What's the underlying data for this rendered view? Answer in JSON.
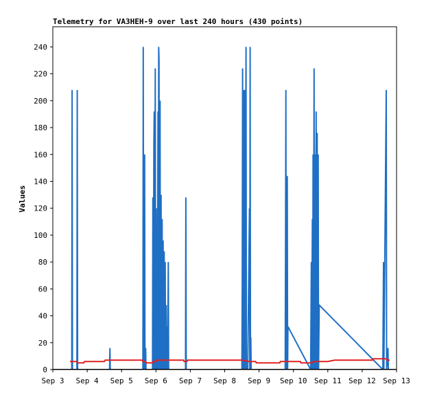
{
  "chart_data": {
    "type": "line",
    "title": "Telemetry for VA3HEH-9 over last 240 hours (430 points)",
    "xlabel": "",
    "ylabel": "Values",
    "ylim": [
      0,
      255
    ],
    "xlim": [
      3.0,
      13.0
    ],
    "yticks": [
      0,
      20,
      40,
      60,
      80,
      100,
      120,
      140,
      160,
      180,
      200,
      220,
      240
    ],
    "xticks": [
      {
        "v": 3,
        "label": "Sep 3"
      },
      {
        "v": 4,
        "label": "Sep 4"
      },
      {
        "v": 5,
        "label": "Sep 5"
      },
      {
        "v": 6,
        "label": "Sep 6"
      },
      {
        "v": 7,
        "label": "Sep 7"
      },
      {
        "v": 8,
        "label": "Sep 8"
      },
      {
        "v": 9,
        "label": "Sep 9"
      },
      {
        "v": 10,
        "label": "Sep 10"
      },
      {
        "v": 11,
        "label": "Sep 11"
      },
      {
        "v": 12,
        "label": "Sep 12"
      },
      {
        "v": 13,
        "label": "Sep 13"
      }
    ],
    "grid": false,
    "series": [
      {
        "color": "#1f6fc4",
        "points": [
          [
            3.55,
            0
          ],
          [
            3.56,
            208
          ],
          [
            3.57,
            0
          ],
          [
            3.7,
            0
          ],
          [
            3.71,
            208
          ],
          [
            3.72,
            0
          ],
          [
            4.65,
            0
          ],
          [
            4.66,
            16
          ],
          [
            4.67,
            0
          ],
          [
            5.62,
            0
          ],
          [
            5.63,
            240
          ],
          [
            5.64,
            0
          ],
          [
            5.66,
            112
          ],
          [
            5.67,
            160
          ],
          [
            5.68,
            0
          ],
          [
            5.7,
            16
          ],
          [
            5.71,
            0
          ],
          [
            5.9,
            0
          ],
          [
            5.91,
            128
          ],
          [
            5.92,
            0
          ],
          [
            5.94,
            170
          ],
          [
            5.95,
            192
          ],
          [
            5.96,
            0
          ],
          [
            5.98,
            224
          ],
          [
            5.99,
            0
          ],
          [
            6.01,
            120
          ],
          [
            6.02,
            0
          ],
          [
            6.03,
            40
          ],
          [
            6.04,
            0
          ],
          [
            6.06,
            192
          ],
          [
            6.07,
            0
          ],
          [
            6.08,
            240
          ],
          [
            6.09,
            230
          ],
          [
            6.1,
            0
          ],
          [
            6.12,
            200
          ],
          [
            6.13,
            0
          ],
          [
            6.15,
            130
          ],
          [
            6.16,
            0
          ],
          [
            6.18,
            112
          ],
          [
            6.19,
            0
          ],
          [
            6.21,
            96
          ],
          [
            6.22,
            0
          ],
          [
            6.24,
            88
          ],
          [
            6.25,
            0
          ],
          [
            6.27,
            80
          ],
          [
            6.28,
            0
          ],
          [
            6.3,
            48
          ],
          [
            6.31,
            0
          ],
          [
            6.33,
            32
          ],
          [
            6.34,
            0
          ],
          [
            6.36,
            80
          ],
          [
            6.37,
            0
          ],
          [
            6.86,
            0
          ],
          [
            6.87,
            128
          ],
          [
            6.88,
            0
          ],
          [
            8.5,
            0
          ],
          [
            8.51,
            64
          ],
          [
            8.52,
            224
          ],
          [
            8.53,
            0
          ],
          [
            8.55,
            208
          ],
          [
            8.56,
            0
          ],
          [
            8.58,
            208
          ],
          [
            8.59,
            0
          ],
          [
            8.62,
            240
          ],
          [
            8.63,
            0
          ],
          [
            8.66,
            0
          ],
          [
            8.67,
            0
          ],
          [
            8.72,
            120
          ],
          [
            8.73,
            0
          ],
          [
            8.74,
            240
          ],
          [
            8.75,
            0
          ],
          [
            8.76,
            24
          ],
          [
            8.77,
            0
          ],
          [
            9.76,
            0
          ],
          [
            9.77,
            96
          ],
          [
            9.78,
            208
          ],
          [
            9.79,
            0
          ],
          [
            9.81,
            100
          ],
          [
            9.82,
            144
          ],
          [
            9.83,
            0
          ],
          [
            9.84,
            32
          ],
          [
            10.5,
            0
          ],
          [
            10.52,
            80
          ],
          [
            10.53,
            0
          ],
          [
            10.55,
            112
          ],
          [
            10.56,
            0
          ],
          [
            10.57,
            160
          ],
          [
            10.58,
            0
          ],
          [
            10.6,
            224
          ],
          [
            10.61,
            0
          ],
          [
            10.63,
            160
          ],
          [
            10.64,
            0
          ],
          [
            10.66,
            192
          ],
          [
            10.67,
            0
          ],
          [
            10.69,
            176
          ],
          [
            10.7,
            0
          ],
          [
            10.72,
            160
          ],
          [
            10.73,
            0
          ],
          [
            10.75,
            48
          ],
          [
            12.6,
            0
          ],
          [
            12.62,
            80
          ],
          [
            12.63,
            0
          ],
          [
            12.7,
            208
          ],
          [
            12.71,
            0
          ],
          [
            12.75,
            16
          ],
          [
            12.76,
            0
          ]
        ]
      },
      {
        "color": "#e02020",
        "points": [
          [
            3.5,
            6
          ],
          [
            3.7,
            6
          ],
          [
            3.72,
            5
          ],
          [
            3.9,
            5
          ],
          [
            3.92,
            6
          ],
          [
            4.5,
            6
          ],
          [
            4.52,
            7
          ],
          [
            5.6,
            7
          ],
          [
            5.62,
            6
          ],
          [
            5.7,
            6
          ],
          [
            5.72,
            5
          ],
          [
            5.9,
            5
          ],
          [
            5.92,
            6
          ],
          [
            6.0,
            6
          ],
          [
            6.02,
            7
          ],
          [
            6.8,
            7
          ],
          [
            6.82,
            6
          ],
          [
            6.9,
            6
          ],
          [
            6.92,
            7
          ],
          [
            7.5,
            7
          ],
          [
            8.5,
            7
          ],
          [
            8.7,
            6
          ],
          [
            8.9,
            6
          ],
          [
            8.92,
            5
          ],
          [
            9.6,
            5
          ],
          [
            9.62,
            6
          ],
          [
            10.2,
            6
          ],
          [
            10.22,
            5
          ],
          [
            10.5,
            5
          ],
          [
            10.6,
            6
          ],
          [
            11.0,
            6
          ],
          [
            11.2,
            7
          ],
          [
            12.2,
            7
          ],
          [
            12.3,
            7
          ],
          [
            12.32,
            8
          ],
          [
            12.7,
            8
          ],
          [
            12.72,
            7
          ],
          [
            12.8,
            7
          ]
        ]
      }
    ]
  }
}
